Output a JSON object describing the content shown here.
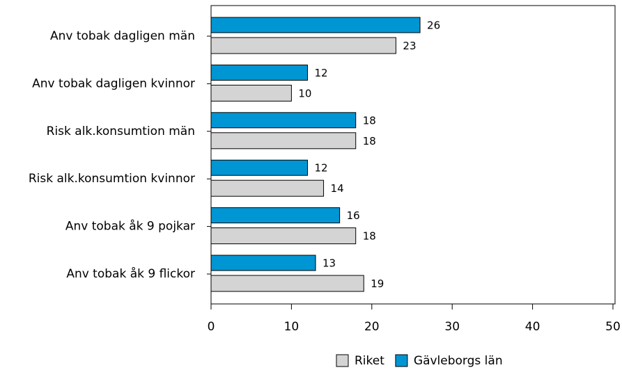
{
  "chart_data": {
    "type": "bar",
    "orientation": "horizontal",
    "categories": [
      "Anv tobak dagligen män",
      "Anv tobak dagligen kvinnor",
      "Risk alk.konsumtion män",
      "Risk alk.konsumtion kvinnor",
      "Anv tobak åk 9 pojkar",
      "Anv tobak åk 9 flickor"
    ],
    "series": [
      {
        "name": "Gävleborgs län",
        "color": "#0095d3",
        "values": [
          26,
          12,
          18,
          12,
          16,
          13
        ]
      },
      {
        "name": "Riket",
        "color": "#d4d4d4",
        "values": [
          23,
          10,
          18,
          14,
          18,
          19
        ]
      }
    ],
    "xlim": [
      0,
      50
    ],
    "xticks": [
      0,
      10,
      20,
      30,
      40,
      50
    ]
  }
}
